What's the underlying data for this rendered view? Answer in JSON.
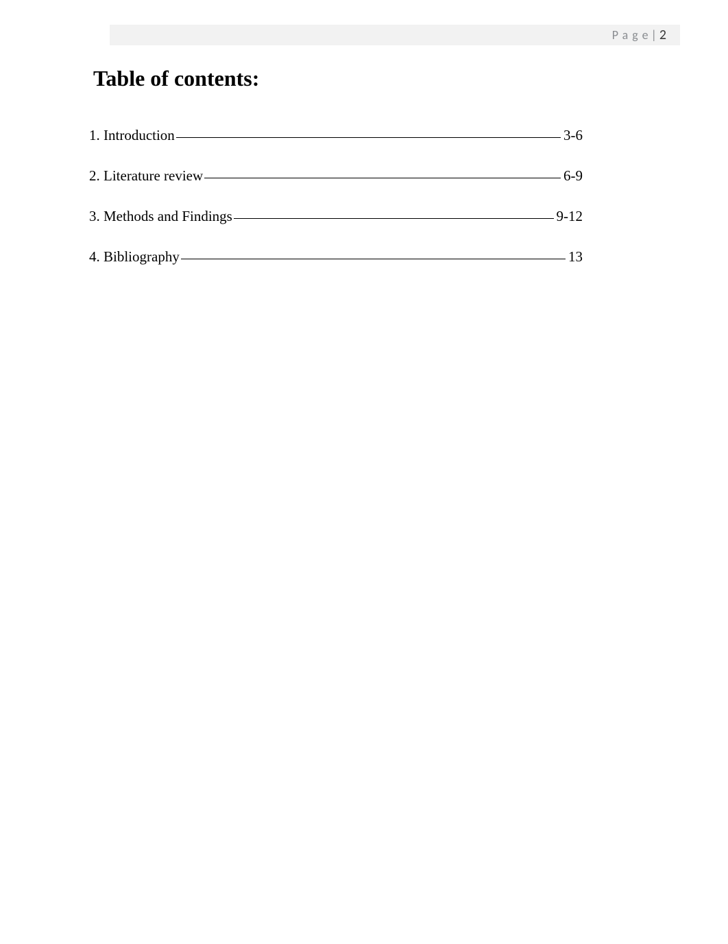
{
  "header": {
    "page_label": "Page",
    "separator": "|",
    "page_number": "2",
    "bar_bg": "#f2f2f2",
    "label_color": "#8a8d91",
    "number_color": "#3a3a3a"
  },
  "title": "Table of contents:",
  "toc": [
    {
      "label": "1. Introduction ",
      "pages": "3-6"
    },
    {
      "label": "2. Literature review",
      "pages": "6-9"
    },
    {
      "label": "3. Methods and Findings",
      "pages": "9-12"
    },
    {
      "label": "4. Bibliography",
      "pages": "13"
    }
  ],
  "colors": {
    "page_bg": "#ffffff",
    "text": "#000000",
    "underline": "#000000"
  },
  "fonts": {
    "body_family": "Times New Roman",
    "header_family": "Calibri",
    "title_size_pt": 24,
    "entry_size_pt": 16,
    "header_size_pt": 14
  }
}
